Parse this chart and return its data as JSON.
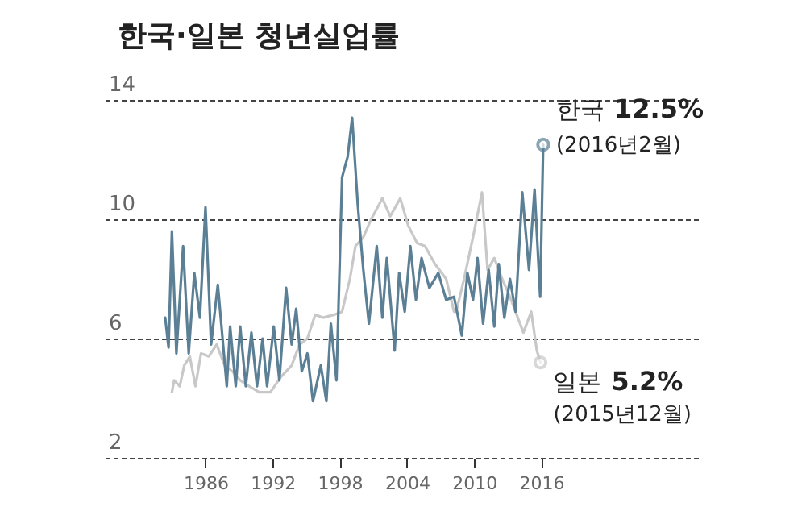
{
  "chart_data": {
    "type": "line",
    "title": "한국·일본 청년실업률",
    "xlim": [
      1977,
      2030
    ],
    "xticks": [
      1986,
      1992,
      1998,
      2004,
      2010,
      2016
    ],
    "ylim": [
      2,
      14
    ],
    "yticks": [
      2,
      6,
      10,
      14
    ],
    "grid": "y",
    "legend": false,
    "series": [
      {
        "name": "한국",
        "color": "#5b7f95",
        "x": [
          1982.4,
          1982.7,
          1983.0,
          1983.4,
          1984.0,
          1984.5,
          1985.0,
          1985.5,
          1986.0,
          1986.5,
          1987.1,
          1987.9,
          1988.2,
          1988.7,
          1989.1,
          1989.6,
          1990.1,
          1990.6,
          1991.1,
          1991.5,
          1992.1,
          1992.6,
          1993.2,
          1993.7,
          1994.1,
          1994.6,
          1995.1,
          1995.6,
          1996.3,
          1996.8,
          1997.2,
          1997.7,
          1998.2,
          1998.7,
          1999.1,
          1999.6,
          2000.1,
          2000.6,
          2001.3,
          2001.8,
          2002.2,
          2002.9,
          2003.3,
          2003.8,
          2004.3,
          2004.8,
          2005.3,
          2006.0,
          2006.8,
          2007.5,
          2008.2,
          2008.9,
          2009.4,
          2009.9,
          2010.3,
          2010.8,
          2011.3,
          2011.8,
          2012.2,
          2012.7,
          2013.2,
          2013.7,
          2014.3,
          2014.9,
          2015.4,
          2015.9,
          2016.17
        ],
        "values": [
          6.7,
          5.7,
          9.6,
          5.5,
          9.1,
          5.5,
          8.2,
          6.7,
          10.4,
          5.8,
          7.8,
          4.4,
          6.4,
          4.4,
          6.4,
          4.4,
          6.2,
          4.4,
          6.0,
          4.4,
          6.4,
          4.6,
          7.7,
          5.8,
          7.0,
          4.9,
          5.5,
          3.9,
          5.1,
          3.9,
          6.5,
          4.6,
          11.4,
          12.1,
          13.4,
          10.5,
          8.3,
          6.5,
          9.1,
          6.7,
          8.7,
          5.6,
          8.2,
          6.9,
          9.1,
          7.3,
          8.7,
          7.7,
          8.2,
          7.3,
          7.4,
          6.1,
          8.2,
          7.3,
          8.7,
          6.5,
          8.3,
          6.4,
          8.5,
          6.7,
          8.0,
          6.9,
          10.9,
          8.3,
          11.0,
          7.4,
          12.5
        ]
      },
      {
        "name": "일본",
        "color": "#c8c8c8",
        "x": [
          1983.0,
          1983.2,
          1983.7,
          1984.1,
          1984.6,
          1985.1,
          1985.6,
          1986.3,
          1987.0,
          1987.7,
          1988.4,
          1989.1,
          1989.9,
          1990.8,
          1991.8,
          1992.7,
          1993.7,
          1994.4,
          1995.1,
          1995.8,
          1996.5,
          1997.5,
          1998.2,
          1998.9,
          1999.4,
          2000.1,
          2000.8,
          2001.8,
          2002.5,
          2003.4,
          2004.1,
          2004.9,
          2005.6,
          2006.5,
          2007.5,
          2008.2,
          2008.4,
          2009.1,
          2009.9,
          2010.7,
          2011.2,
          2011.8,
          2012.5,
          2013.2,
          2013.9,
          2014.4,
          2015.1,
          2015.6,
          2015.92
        ],
        "values": [
          4.2,
          4.6,
          4.4,
          5.1,
          5.4,
          4.4,
          5.5,
          5.4,
          5.8,
          5.1,
          4.9,
          4.6,
          4.4,
          4.2,
          4.2,
          4.7,
          5.1,
          5.8,
          6.0,
          6.8,
          6.7,
          6.8,
          6.9,
          8.0,
          9.1,
          9.4,
          10.0,
          10.7,
          10.1,
          10.7,
          9.8,
          9.2,
          9.1,
          8.5,
          8.0,
          6.9,
          6.9,
          8.0,
          9.4,
          10.9,
          8.3,
          8.7,
          8.0,
          7.4,
          6.7,
          6.2,
          6.9,
          5.6,
          5.2
        ]
      }
    ],
    "annotations": [
      "12.5%",
      "(2016년2월)",
      "5.2%",
      "(2015년12월)"
    ]
  }
}
